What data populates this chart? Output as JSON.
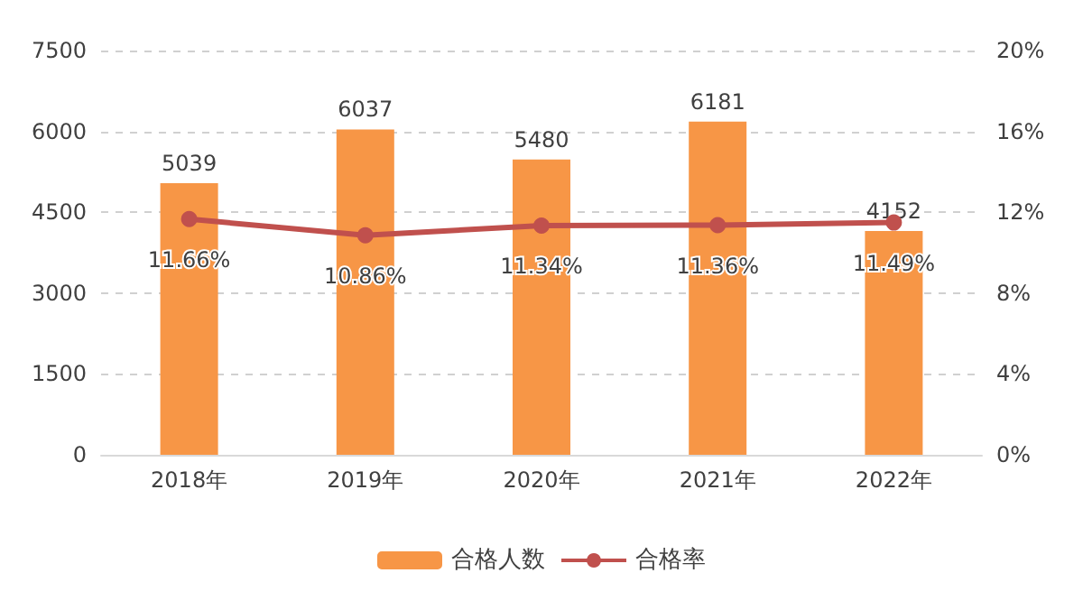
{
  "chart_data": {
    "type": "bar",
    "categories": [
      "2018年",
      "2019年",
      "2020年",
      "2021年",
      "2022年"
    ],
    "series": [
      {
        "name": "合格人数",
        "color": "#f79646",
        "values": [
          5039,
          6037,
          5480,
          6181,
          4152
        ],
        "value_labels": [
          "5039",
          "6037",
          "5480",
          "6181",
          "4152"
        ]
      },
      {
        "name": "合格率",
        "type": "line",
        "axis": "y2",
        "color": "#c0504d",
        "values": [
          11.66,
          10.86,
          11.34,
          11.36,
          11.49
        ],
        "value_labels": [
          "11.66%",
          "10.86%",
          "11.34%",
          "11.36%",
          "11.49%"
        ]
      }
    ],
    "ylim": [
      0,
      7500
    ],
    "yticks": [
      0,
      1500,
      3000,
      4500,
      6000,
      7500
    ],
    "y2lim": [
      0,
      20
    ],
    "y2ticks": [
      {
        "value": 0,
        "label": "0%"
      },
      {
        "value": 4,
        "label": "4%"
      },
      {
        "value": 8,
        "label": "8%"
      },
      {
        "value": 12,
        "label": "12%"
      },
      {
        "value": 16,
        "label": "16%"
      },
      {
        "value": 20,
        "label": "20%"
      }
    ],
    "grid": "y",
    "legend": "bottom",
    "marker": "circle"
  }
}
